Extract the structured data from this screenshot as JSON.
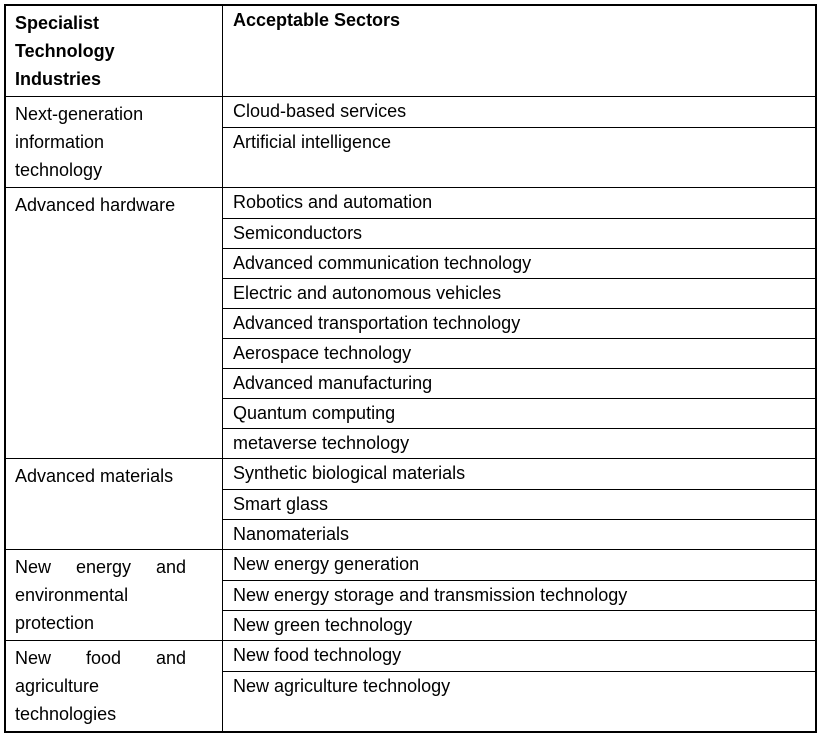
{
  "table": {
    "header": {
      "industries": "Specialist Technology Industries",
      "sectors": "Acceptable Sectors"
    },
    "groups": [
      {
        "industry": "Next-generation information technology",
        "sectors": [
          "Cloud-based services",
          "Artificial intelligence"
        ]
      },
      {
        "industry": "Advanced hardware",
        "sectors": [
          "Robotics and automation",
          "Semiconductors",
          "Advanced communication technology",
          "Electric and autonomous vehicles",
          "Advanced transportation technology",
          "Aerospace technology",
          "Advanced manufacturing",
          "Quantum computing",
          "metaverse technology"
        ]
      },
      {
        "industry": "Advanced materials",
        "sectors": [
          "Synthetic biological materials",
          "Smart glass",
          "Nanomaterials"
        ]
      },
      {
        "industry": "New energy and environmental protection",
        "sectors": [
          "New energy generation",
          "New energy storage and transmission technology",
          "New green technology"
        ]
      },
      {
        "industry": "New food and agriculture technologies",
        "sectors": [
          "New food technology",
          "New agriculture technology"
        ]
      }
    ]
  }
}
